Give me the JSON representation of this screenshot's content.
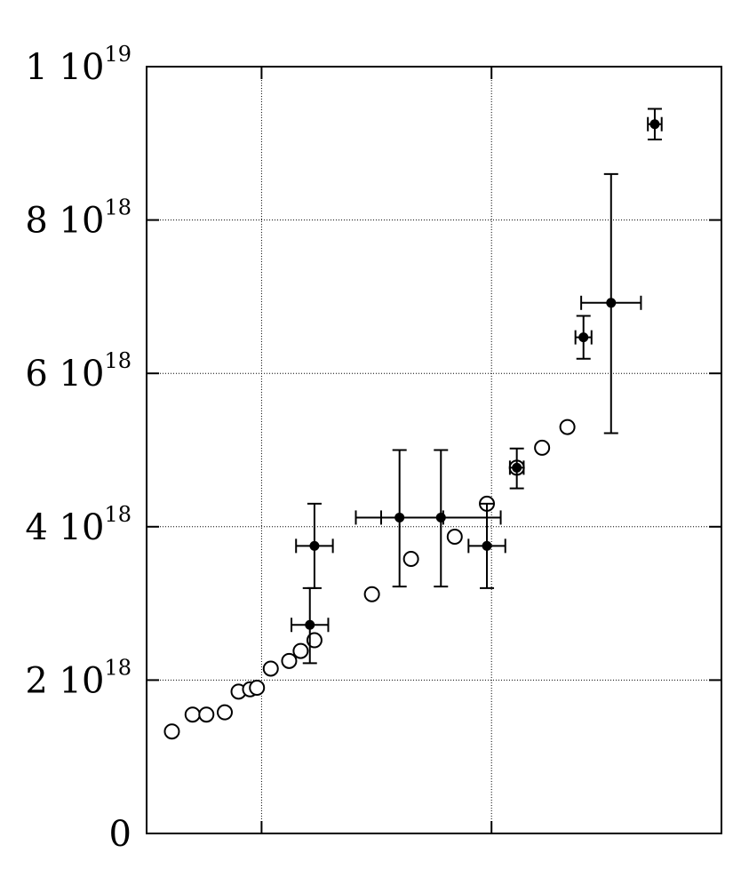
{
  "chart_data": {
    "type": "scatter",
    "title": "",
    "xlabel": "",
    "ylabel": "",
    "x_tick_labels": [],
    "xlim": [
      0,
      25
    ],
    "ylim": [
      0,
      1e+19
    ],
    "grid": true,
    "y_tick_labels": [
      {
        "value": 0,
        "mantissa": "0",
        "exponent": ""
      },
      {
        "value": 2e+18,
        "mantissa": "2 10",
        "exponent": "18"
      },
      {
        "value": 4e+18,
        "mantissa": "4 10",
        "exponent": "18"
      },
      {
        "value": 6e+18,
        "mantissa": "6 10",
        "exponent": "18"
      },
      {
        "value": 8e+18,
        "mantissa": "8 10",
        "exponent": "18"
      },
      {
        "value": 1e+19,
        "mantissa": "1 10",
        "exponent": "19"
      }
    ],
    "x_grid": [
      5,
      15
    ],
    "series": [
      {
        "marker": "open-circle",
        "points": [
          {
            "x": 1.1,
            "y": 1.33e+18
          },
          {
            "x": 2.0,
            "y": 1.55e+18
          },
          {
            "x": 2.6,
            "y": 1.55e+18
          },
          {
            "x": 3.4,
            "y": 1.58e+18
          },
          {
            "x": 4.0,
            "y": 1.85e+18
          },
          {
            "x": 4.5,
            "y": 1.88e+18
          },
          {
            "x": 4.8,
            "y": 1.9e+18
          },
          {
            "x": 5.4,
            "y": 2.15e+18
          },
          {
            "x": 6.2,
            "y": 2.25e+18
          },
          {
            "x": 6.7,
            "y": 2.38e+18
          },
          {
            "x": 7.3,
            "y": 2.52e+18
          },
          {
            "x": 9.8,
            "y": 3.12e+18
          },
          {
            "x": 11.5,
            "y": 3.58e+18
          },
          {
            "x": 13.4,
            "y": 3.87e+18
          },
          {
            "x": 14.8,
            "y": 4.3e+18
          },
          {
            "x": 16.1,
            "y": 4.77e+18
          },
          {
            "x": 17.2,
            "y": 5.03e+18
          },
          {
            "x": 18.3,
            "y": 5.3e+18
          }
        ]
      },
      {
        "marker": "filled-circle-errorbars",
        "points": [
          {
            "x": 7.1,
            "y": 2.72e+18,
            "xerr": 0.8,
            "yerr_low": 5e+17,
            "yerr_high": 4.8e+17
          },
          {
            "x": 7.3,
            "y": 3.75e+18,
            "xerr": 0.8,
            "yerr_low": 5.5e+17,
            "yerr_high": 5.5e+17
          },
          {
            "x": 11.0,
            "y": 4.12e+18,
            "xerr": 1.9,
            "yerr_low": 9e+17,
            "yerr_high": 8.8e+17
          },
          {
            "x": 12.8,
            "y": 4.12e+18,
            "xerr": 2.6,
            "yerr_low": 9e+17,
            "yerr_high": 8.8e+17
          },
          {
            "x": 14.8,
            "y": 3.75e+18,
            "xerr": 0.8,
            "yerr_low": 5.5e+17,
            "yerr_high": 5.5e+17
          },
          {
            "x": 16.1,
            "y": 4.77e+18,
            "xerr": 0.3,
            "yerr_low": 2.7e+17,
            "yerr_high": 2.5e+17
          },
          {
            "x": 19.0,
            "y": 6.47e+18,
            "xerr": 0.35,
            "yerr_low": 2.8e+17,
            "yerr_high": 2.8e+17
          },
          {
            "x": 20.2,
            "y": 6.92e+18,
            "xerr": 1.3,
            "yerr_low": 1.7e+18,
            "yerr_high": 1.68e+18
          },
          {
            "x": 22.1,
            "y": 9.25e+18,
            "xerr": 0.3,
            "yerr_low": 2e+17,
            "yerr_high": 2e+17
          }
        ]
      }
    ]
  }
}
